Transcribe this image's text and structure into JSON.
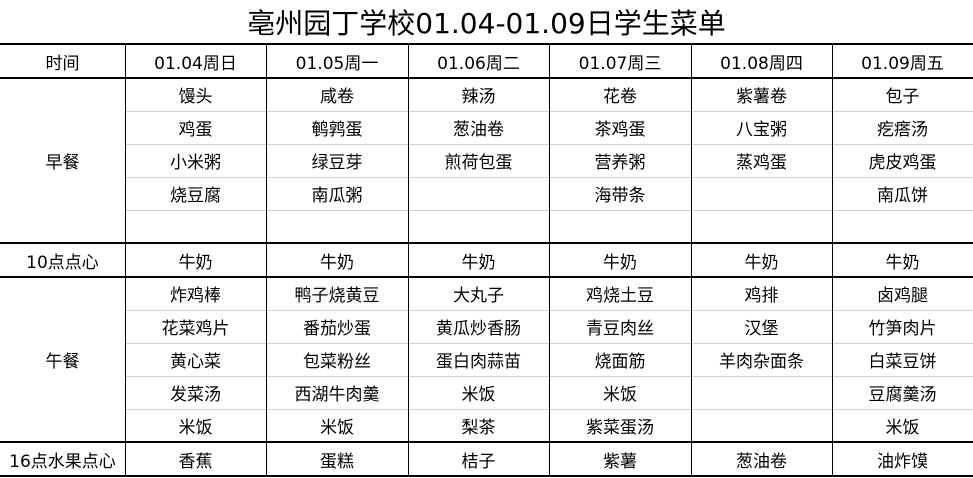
{
  "title": "亳州园丁学校01.04-01.09日学生菜单",
  "header": {
    "time_label": "时间",
    "days": [
      "01.04周日",
      "01.05周一",
      "01.06周二",
      "01.07周三",
      "01.08周四",
      "01.09周五"
    ]
  },
  "sections": [
    {
      "label": "早餐",
      "rows": 5,
      "items": [
        [
          "馒头",
          "鸡蛋",
          "小米粥",
          "烧豆腐",
          ""
        ],
        [
          "咸卷",
          "鹌鹑蛋",
          "绿豆芽",
          "南瓜粥",
          ""
        ],
        [
          "辣汤",
          "葱油卷",
          "煎荷包蛋",
          "",
          ""
        ],
        [
          "花卷",
          "茶鸡蛋",
          "营养粥",
          "海带条",
          ""
        ],
        [
          "紫薯卷",
          "八宝粥",
          "蒸鸡蛋",
          "",
          ""
        ],
        [
          "包子",
          "疙瘩汤",
          "虎皮鸡蛋",
          "南瓜饼",
          ""
        ]
      ]
    },
    {
      "label": "10点点心",
      "rows": 1,
      "items": [
        [
          "牛奶"
        ],
        [
          "牛奶"
        ],
        [
          "牛奶"
        ],
        [
          "牛奶"
        ],
        [
          "牛奶"
        ],
        [
          "牛奶"
        ]
      ]
    },
    {
      "label": "午餐",
      "rows": 5,
      "items": [
        [
          "炸鸡棒",
          "花菜鸡片",
          "黄心菜",
          "发菜汤",
          "米饭"
        ],
        [
          "鸭子烧黄豆",
          "番茄炒蛋",
          "包菜粉丝",
          "西湖牛肉羹",
          "米饭"
        ],
        [
          "大丸子",
          "黄瓜炒香肠",
          "蛋白肉蒜苗",
          "米饭",
          "梨茶"
        ],
        [
          "鸡烧土豆",
          "青豆肉丝",
          "烧面筋",
          "米饭",
          "紫菜蛋汤"
        ],
        [
          "鸡排",
          "汉堡",
          "羊肉杂面条",
          "",
          ""
        ],
        [
          "卤鸡腿",
          "竹笋肉片",
          "白菜豆饼",
          "豆腐羹汤",
          "米饭"
        ]
      ]
    },
    {
      "label": "16点水果点心",
      "rows": 1,
      "items": [
        [
          "香蕉"
        ],
        [
          "蛋糕"
        ],
        [
          "桔子"
        ],
        [
          "紫薯"
        ],
        [
          "葱油卷"
        ],
        [
          "油炸馍"
        ]
      ]
    }
  ]
}
